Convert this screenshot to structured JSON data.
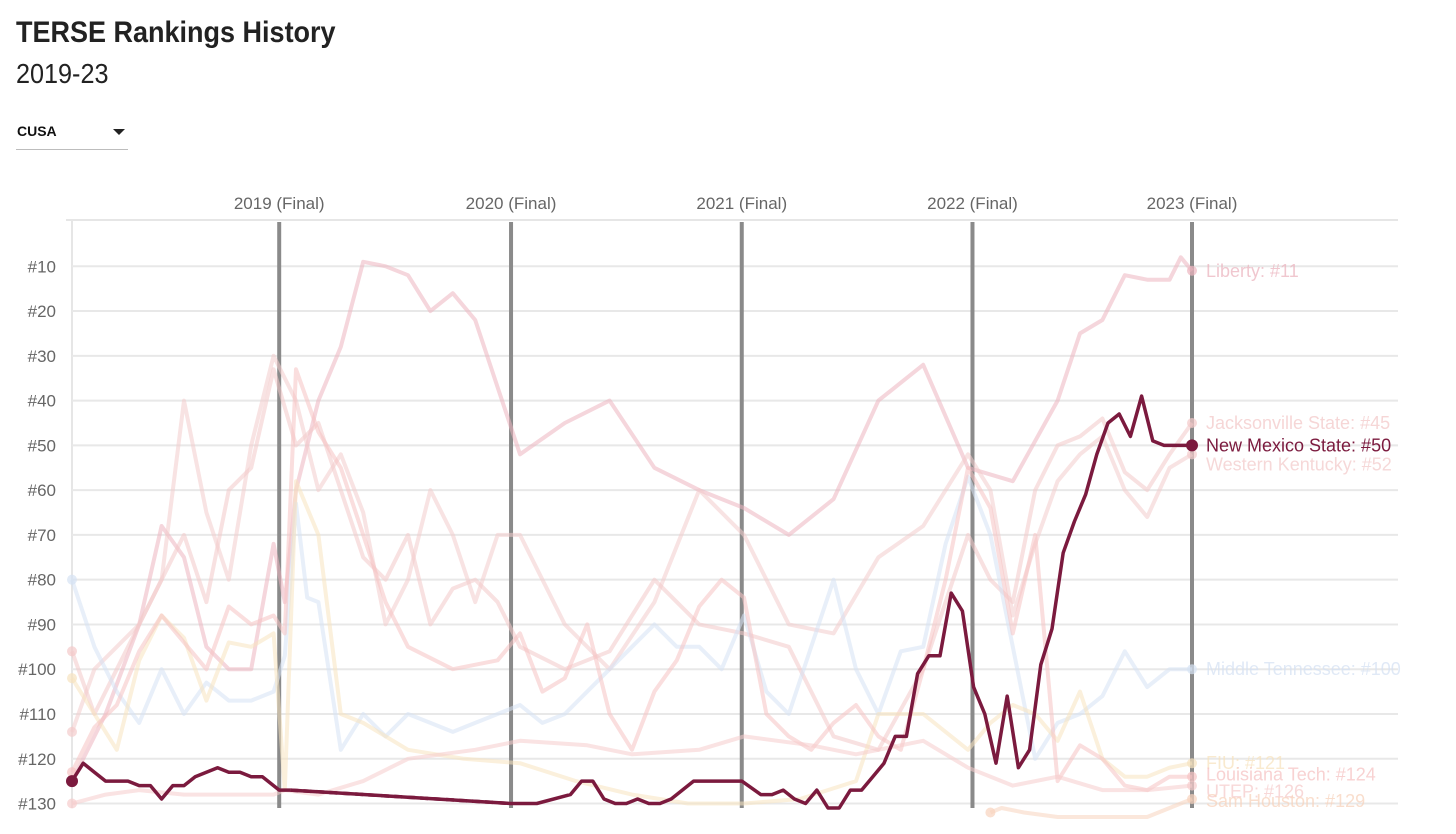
{
  "header": {
    "title": "TERSE Rankings History",
    "subtitle": "2019-23"
  },
  "filter": {
    "selected": "CUSA",
    "icon": "chevron-down-icon"
  },
  "chart_data": {
    "type": "line",
    "title": "TERSE Rankings History",
    "subtitle": "2019-23",
    "x_range": [
      0,
      100
    ],
    "y_range": [
      1,
      131
    ],
    "y_reversed": true,
    "y_ticks": [
      {
        "value": 10,
        "label": "#10"
      },
      {
        "value": 20,
        "label": "#20"
      },
      {
        "value": 30,
        "label": "#30"
      },
      {
        "value": 40,
        "label": "#40"
      },
      {
        "value": 50,
        "label": "#50"
      },
      {
        "value": 60,
        "label": "#60"
      },
      {
        "value": 70,
        "label": "#70"
      },
      {
        "value": 80,
        "label": "#80"
      },
      {
        "value": 90,
        "label": "#90"
      },
      {
        "value": 100,
        "label": "#100"
      },
      {
        "value": 110,
        "label": "#110"
      },
      {
        "value": 120,
        "label": "#120"
      },
      {
        "value": 130,
        "label": "#130"
      }
    ],
    "season_markers": [
      {
        "x": 18.5,
        "label": "2019 (Final)"
      },
      {
        "x": 39.2,
        "label": "2020 (Final)"
      },
      {
        "x": 59.8,
        "label": "2021 (Final)"
      },
      {
        "x": 80.4,
        "label": "2022 (Final)"
      },
      {
        "x": 100,
        "label": "2023 (Final)"
      }
    ],
    "grid": true,
    "highlight": "New Mexico State",
    "series": [
      {
        "name": "New Mexico State",
        "end_label": "New Mexico State: #50",
        "final": 50,
        "color": "#7b1a3e",
        "highlight": true,
        "x": [
          0,
          1,
          2,
          3,
          4,
          5,
          6,
          7,
          8,
          9,
          10,
          11,
          12,
          13,
          14,
          15,
          16,
          17,
          18.5,
          19.5,
          39.2,
          41.5,
          44.5,
          45.5,
          46.5,
          47.5,
          48.5,
          49.5,
          50.5,
          51.5,
          52.5,
          53.5,
          55.5,
          56.5,
          57.5,
          59.8,
          61.5,
          62.5,
          63.5,
          64.5,
          65.5,
          66.5,
          67.5,
          68.5,
          69.5,
          70.5,
          71.5,
          72.5,
          73.5,
          74.5,
          75.5,
          76.5,
          77.5,
          78.5,
          79.5,
          80.5,
          81.5,
          82.5,
          83.5,
          84.5,
          85.5,
          86.5,
          87.5,
          88.5,
          89.5,
          90.5,
          91.5,
          92.5,
          93.5,
          94.5,
          95.5,
          96.5,
          97.5,
          98.5,
          99.3,
          100
        ],
        "y": [
          125,
          121,
          123,
          125,
          125,
          125,
          126,
          126,
          129,
          126,
          126,
          124,
          123,
          122,
          123,
          123,
          124,
          124,
          127,
          127,
          130,
          130,
          128,
          125,
          125,
          129,
          130,
          130,
          129,
          130,
          130,
          129,
          125,
          125,
          125,
          125,
          128,
          128,
          127,
          129,
          130,
          127,
          131,
          131,
          127,
          127,
          124,
          121,
          115,
          115,
          101,
          97,
          97,
          83,
          87,
          104,
          110,
          121,
          106,
          122,
          118,
          99,
          91,
          74,
          67,
          61,
          52,
          45,
          43,
          48,
          39,
          49,
          50,
          50,
          50,
          50
        ],
        "dashed_segments": [
          [
            19,
            20
          ]
        ]
      },
      {
        "name": "Liberty",
        "end_label": "Liberty: #11",
        "final": 11,
        "color": "#ecb5bf",
        "x": [
          0,
          3,
          6,
          8,
          10,
          12,
          14,
          16,
          18,
          19,
          20,
          22,
          24,
          26,
          28,
          30,
          32,
          34,
          36,
          38,
          40,
          44,
          48,
          52,
          56,
          60,
          64,
          68,
          72,
          76,
          80,
          84,
          88,
          90,
          92,
          94,
          96,
          98,
          99,
          100
        ],
        "y": [
          125,
          110,
          90,
          68,
          75,
          95,
          100,
          100,
          72,
          85,
          60,
          40,
          28,
          9,
          10,
          12,
          20,
          16,
          22,
          37,
          52,
          45,
          40,
          55,
          60,
          64,
          70,
          62,
          40,
          32,
          55,
          58,
          40,
          25,
          22,
          12,
          13,
          13,
          8,
          11
        ]
      },
      {
        "name": "Jacksonville State",
        "end_label": "Jacksonville State: #45",
        "final": 45,
        "color": "#f3c9c9",
        "x": [
          0,
          2,
          4,
          6,
          8,
          10,
          12,
          14,
          16,
          18,
          20,
          22,
          24,
          26,
          28,
          30,
          32,
          34,
          36,
          38,
          40,
          44,
          48,
          52,
          56,
          60,
          64,
          68,
          72,
          76,
          80,
          82,
          84,
          86,
          88,
          90,
          92,
          94,
          96,
          98,
          100
        ],
        "y": [
          96,
          110,
          100,
          90,
          80,
          70,
          85,
          60,
          55,
          33,
          50,
          45,
          60,
          75,
          80,
          70,
          90,
          82,
          80,
          85,
          95,
          100,
          96,
          80,
          90,
          92,
          95,
          115,
          118,
          100,
          70,
          80,
          85,
          60,
          50,
          48,
          44,
          56,
          60,
          52,
          45
        ]
      },
      {
        "name": "Western Kentucky",
        "end_label": "Western Kentucky: #52",
        "final": 52,
        "color": "#f3cccc",
        "x": [
          0,
          2,
          4,
          6,
          8,
          10,
          12,
          14,
          16,
          18,
          20,
          22,
          24,
          26,
          28,
          30,
          32,
          34,
          36,
          38,
          40,
          44,
          48,
          52,
          56,
          60,
          64,
          68,
          72,
          76,
          80,
          82,
          84,
          86,
          88,
          90,
          92,
          94,
          96,
          98,
          100
        ],
        "y": [
          114,
          100,
          95,
          90,
          80,
          40,
          65,
          80,
          50,
          30,
          40,
          60,
          52,
          65,
          90,
          80,
          60,
          70,
          85,
          70,
          70,
          90,
          100,
          85,
          60,
          70,
          90,
          92,
          75,
          68,
          52,
          60,
          88,
          72,
          58,
          52,
          48,
          60,
          66,
          55,
          52
        ]
      },
      {
        "name": "Middle Tennessee",
        "end_label": "Middle Tennessee: #100",
        "final": 100,
        "color": "#d6e2f4",
        "x": [
          0,
          2,
          4,
          6,
          8,
          10,
          12,
          14,
          16,
          18,
          19,
          20,
          21,
          22,
          24,
          26,
          28,
          30,
          32,
          34,
          36,
          38,
          40,
          42,
          44,
          46,
          48,
          50,
          52,
          54,
          56,
          58,
          60,
          62,
          64,
          66,
          68,
          70,
          72,
          74,
          76,
          78,
          80,
          82,
          84,
          86,
          88,
          90,
          92,
          94,
          96,
          98,
          100
        ],
        "y": [
          80,
          95,
          105,
          112,
          100,
          110,
          103,
          107,
          107,
          105,
          97,
          63,
          84,
          85,
          118,
          110,
          115,
          110,
          112,
          114,
          112,
          110,
          108,
          112,
          110,
          105,
          100,
          95,
          90,
          95,
          95,
          100,
          88,
          105,
          110,
          95,
          80,
          100,
          110,
          96,
          95,
          72,
          57,
          70,
          95,
          120,
          112,
          110,
          106,
          96,
          104,
          100,
          100
        ]
      },
      {
        "name": "FIU",
        "end_label": "FIU: #121",
        "final": 121,
        "color": "#f7e3bf",
        "x": [
          0,
          2,
          4,
          6,
          8,
          10,
          12,
          14,
          16,
          18,
          19,
          20,
          22,
          24,
          26,
          30,
          35,
          40,
          45,
          50,
          55,
          60,
          65,
          70,
          72,
          76,
          80,
          82,
          84,
          86,
          88,
          90,
          92,
          94,
          96,
          98,
          100
        ],
        "y": [
          102,
          110,
          118,
          98,
          88,
          93,
          107,
          94,
          95,
          92,
          127,
          58,
          70,
          110,
          112,
          118,
          120,
          121,
          125,
          128,
          130,
          130,
          129,
          125,
          110,
          110,
          118,
          112,
          108,
          110,
          116,
          105,
          120,
          124,
          124,
          122,
          121
        ]
      },
      {
        "name": "Louisiana Tech",
        "end_label": "Louisiana Tech: #124",
        "final": 124,
        "color": "#f6c3c3",
        "x": [
          0,
          2,
          4,
          6,
          8,
          10,
          12,
          14,
          16,
          18,
          19,
          20,
          22,
          24,
          26,
          28,
          30,
          34,
          38,
          40,
          42,
          44,
          46,
          48,
          50,
          52,
          54,
          56,
          58,
          60,
          62,
          64,
          66,
          68,
          70,
          72,
          74,
          76,
          78,
          80,
          82,
          84,
          86,
          88,
          90,
          92,
          94,
          96,
          98,
          100
        ],
        "y": [
          123,
          113,
          108,
          96,
          88,
          94,
          100,
          86,
          90,
          88,
          92,
          33,
          47,
          55,
          70,
          85,
          95,
          100,
          98,
          92,
          105,
          102,
          90,
          110,
          118,
          105,
          98,
          86,
          80,
          84,
          110,
          115,
          118,
          112,
          108,
          115,
          118,
          100,
          80,
          55,
          64,
          92,
          70,
          125,
          117,
          120,
          126,
          127,
          124,
          124
        ]
      },
      {
        "name": "UTEP",
        "end_label": "UTEP: #126",
        "final": 126,
        "color": "#f6cccc",
        "x": [
          0,
          3,
          6,
          10,
          14,
          18,
          19,
          22,
          26,
          30,
          36,
          40,
          46,
          50,
          56,
          60,
          66,
          70,
          76,
          80,
          84,
          88,
          92,
          96,
          100
        ],
        "y": [
          130,
          128,
          127,
          128,
          128,
          128,
          127,
          128,
          125,
          120,
          118,
          116,
          117,
          119,
          118,
          115,
          117,
          119,
          116,
          122,
          126,
          124,
          127,
          127,
          126
        ]
      },
      {
        "name": "Sam Houston",
        "end_label": "Sam Houston: #129",
        "final": 129,
        "color": "#f8d3bd",
        "x": [
          82,
          83,
          85,
          88,
          92,
          96,
          98,
          100
        ],
        "y": [
          132,
          131,
          132,
          133,
          133,
          133,
          131,
          129
        ]
      }
    ]
  }
}
